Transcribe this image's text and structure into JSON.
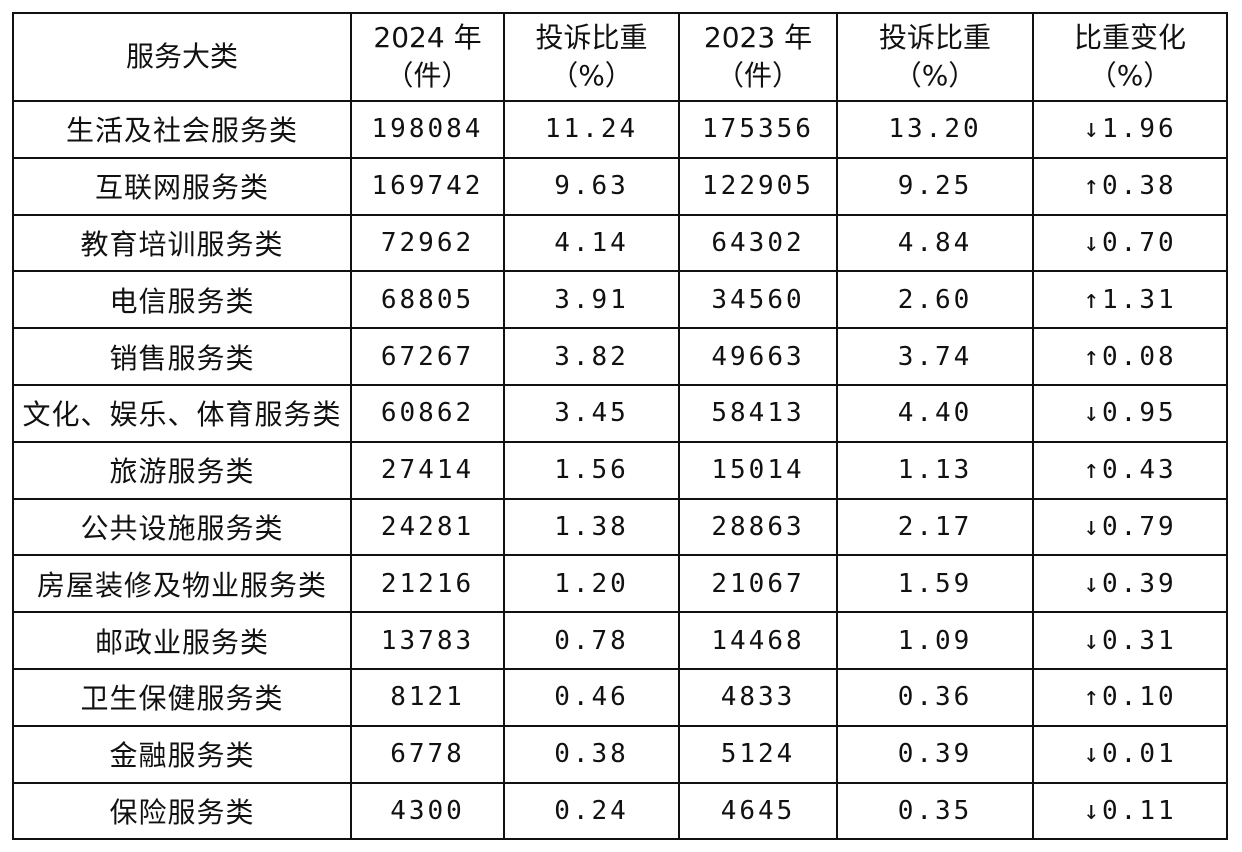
{
  "table": {
    "header": [
      [
        "服务大类"
      ],
      [
        "2024 年",
        "（件）"
      ],
      [
        "投诉比重",
        "（%）"
      ],
      [
        "2023 年",
        "（件）"
      ],
      [
        "投诉比重",
        "（%）"
      ],
      [
        "比重变化",
        "（%）"
      ]
    ],
    "rows": [
      [
        "生活及社会服务类",
        "198084",
        "11.24",
        "175356",
        "13.20",
        "↓1.96"
      ],
      [
        "互联网服务类",
        "169742",
        "9.63",
        "122905",
        "9.25",
        "↑0.38"
      ],
      [
        "教育培训服务类",
        "72962",
        "4.14",
        "64302",
        "4.84",
        "↓0.70"
      ],
      [
        "电信服务类",
        "68805",
        "3.91",
        "34560",
        "2.60",
        "↑1.31"
      ],
      [
        "销售服务类",
        "67267",
        "3.82",
        "49663",
        "3.74",
        "↑0.08"
      ],
      [
        "文化、娱乐、体育服务类",
        "60862",
        "3.45",
        "58413",
        "4.40",
        "↓0.95"
      ],
      [
        "旅游服务类",
        "27414",
        "1.56",
        "15014",
        "1.13",
        "↑0.43"
      ],
      [
        "公共设施服务类",
        "24281",
        "1.38",
        "28863",
        "2.17",
        "↓0.79"
      ],
      [
        "房屋装修及物业服务类",
        "21216",
        "1.20",
        "21067",
        "1.59",
        "↓0.39"
      ],
      [
        "邮政业服务类",
        "13783",
        "0.78",
        "14468",
        "1.09",
        "↓0.31"
      ],
      [
        "卫生保健服务类",
        "8121",
        "0.46",
        "4833",
        "0.36",
        "↑0.10"
      ],
      [
        "金融服务类",
        "6778",
        "0.38",
        "5124",
        "0.39",
        "↓0.01"
      ],
      [
        "保险服务类",
        "4300",
        "0.24",
        "4645",
        "0.35",
        "↓0.11"
      ]
    ]
  }
}
